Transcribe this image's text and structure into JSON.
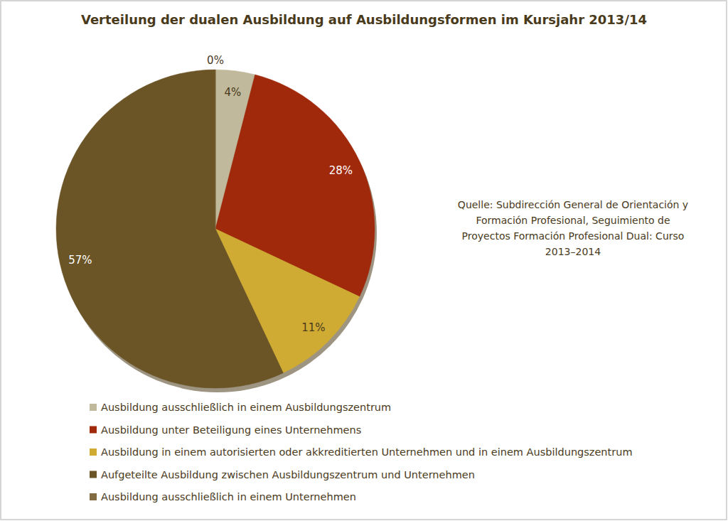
{
  "chart_data": {
    "type": "pie",
    "title": "Verteilung der dualen Ausbildung auf Ausbildungsformen im Kursjahr 2013/14",
    "categories": [
      "Ausbildung ausschließlich in einem Ausbildungszentrum",
      "Ausbildung unter Beteiligung eines Unternehmens",
      "Ausbildung in einem autorisierten oder akkreditierten Unternehmen und in einem Ausbildungszentrum",
      "Aufgeteilte Ausbildung zwischen Ausbildungszentrum und Unternehmen",
      "Ausbildung ausschließlich in einem Unternehmen"
    ],
    "values": [
      4,
      28,
      11,
      57,
      0
    ],
    "value_labels": [
      "4%",
      "28%",
      "11%",
      "57%",
      "0%"
    ],
    "colors": [
      "#c0b99b",
      "#a0290b",
      "#cfab33",
      "#6b5426",
      "#806b42"
    ],
    "data_labels": true,
    "legend": "bottom",
    "annotations": [
      "Quelle: Subdirección General de Orientación y",
      "Formación Profesional, Seguimiento de",
      "Proyectos Formación Profesional Dual: Curso",
      "2013–2014"
    ]
  }
}
